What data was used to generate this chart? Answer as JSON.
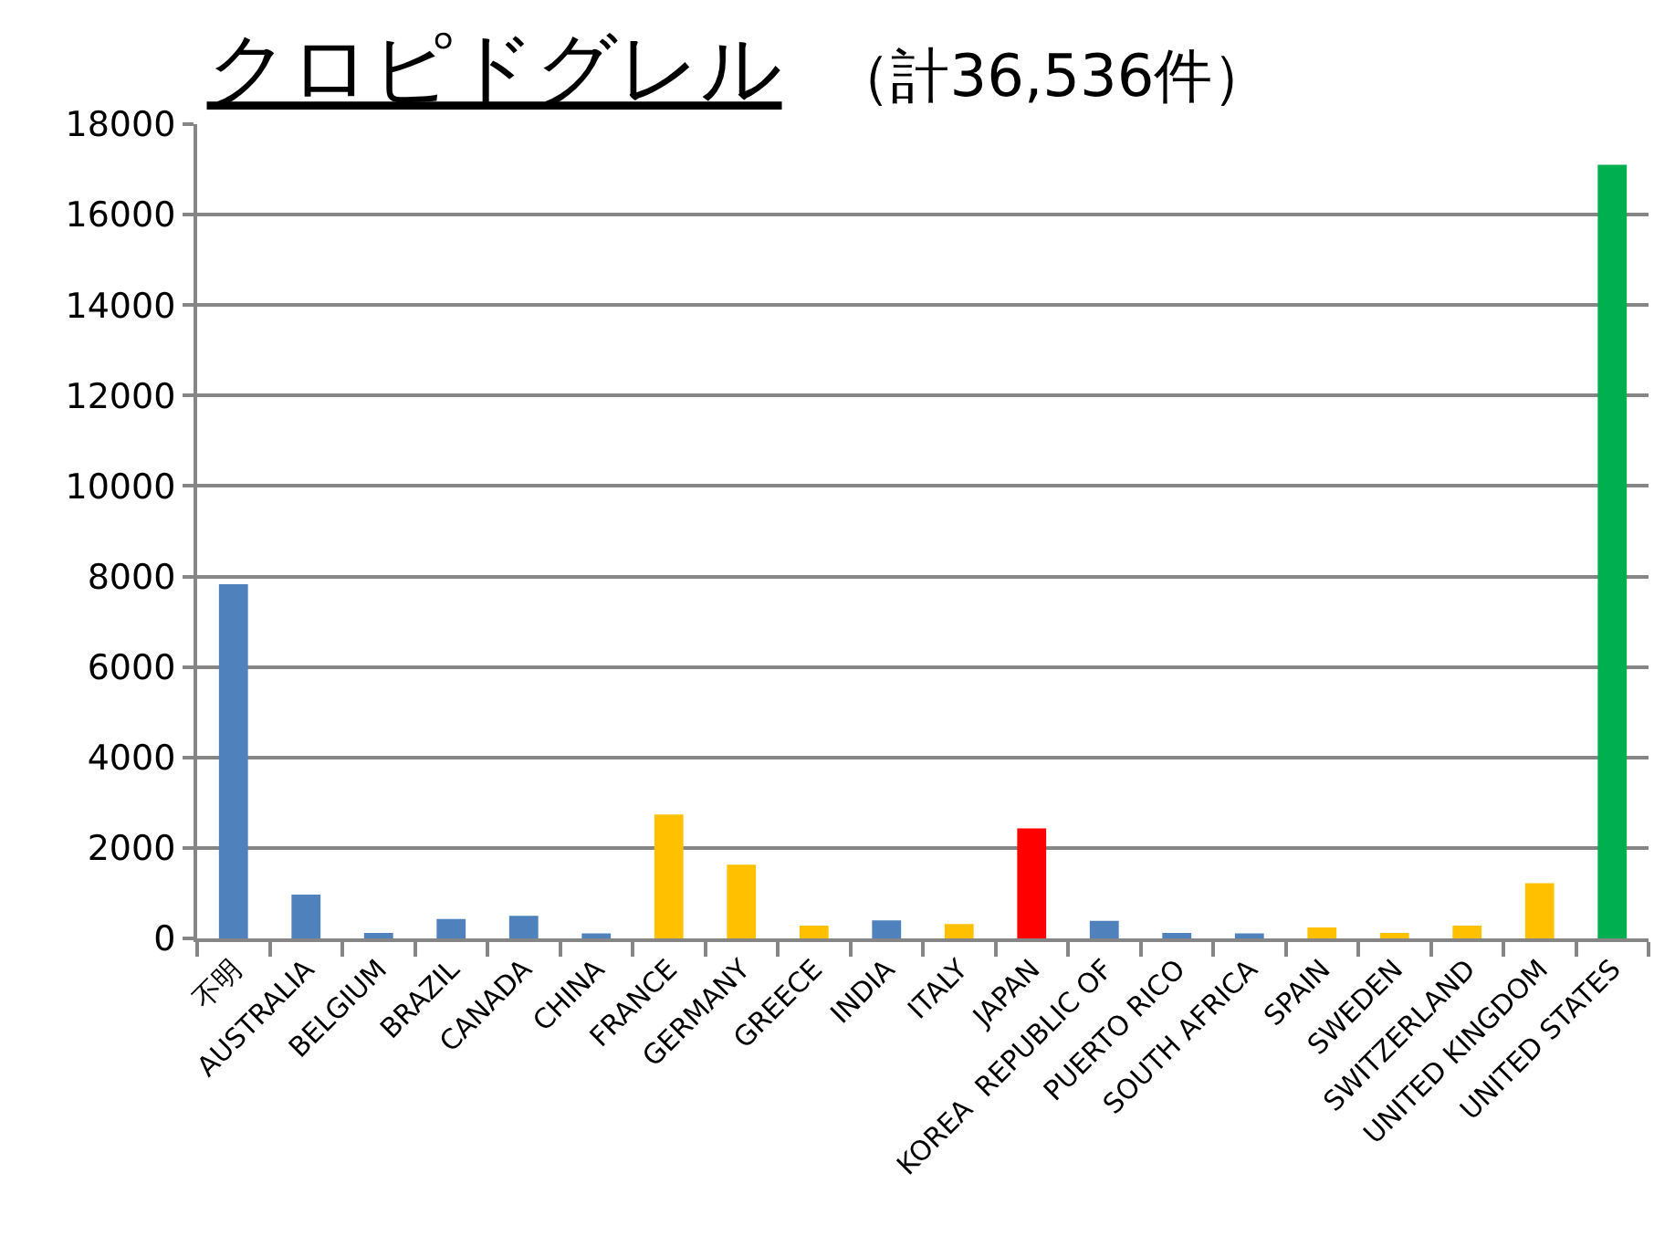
{
  "chart_data": {
    "type": "bar",
    "title": "クロピドグレル",
    "subtitle": "（計36,536件）",
    "categories": [
      "不明",
      "AUSTRALIA",
      "BELGIUM",
      "BRAZIL",
      "CANADA",
      "CHINA",
      "FRANCE",
      "GERMANY",
      "GREECE",
      "INDIA",
      "ITALY",
      "JAPAN",
      "KOREA  REPUBLIC OF",
      "PUERTO RICO",
      "SOUTH AFRICA",
      "SPAIN",
      "SWEDEN",
      "SWITZERLAND",
      "UNITED KINGDOM",
      "UNITED STATES"
    ],
    "values": [
      7830,
      970,
      120,
      430,
      500,
      110,
      2740,
      1630,
      280,
      400,
      320,
      2430,
      390,
      120,
      110,
      240,
      120,
      280,
      1220,
      17100
    ],
    "colors": [
      "#4f81bd",
      "#4f81bd",
      "#4f81bd",
      "#4f81bd",
      "#4f81bd",
      "#4f81bd",
      "#ffc000",
      "#ffc000",
      "#ffc000",
      "#4f81bd",
      "#ffc000",
      "#ff0000",
      "#4f81bd",
      "#4f81bd",
      "#4f81bd",
      "#ffc000",
      "#ffc000",
      "#ffc000",
      "#ffc000",
      "#00b050"
    ],
    "ylim": [
      0,
      18000
    ],
    "yticks": [
      0,
      2000,
      4000,
      6000,
      8000,
      10000,
      12000,
      14000,
      16000,
      18000
    ],
    "grid": "y"
  }
}
